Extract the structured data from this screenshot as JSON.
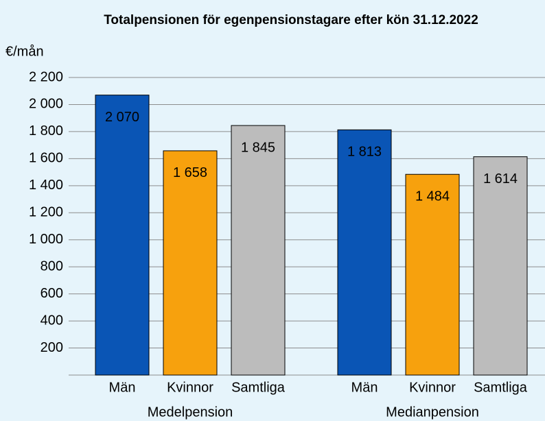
{
  "chart_data": {
    "type": "bar",
    "title": "Totalpensionen för egenpensionstagare efter kön 31.12.2022",
    "y_label": "€/mån",
    "categories": [
      "Medelpension",
      "Medianpension"
    ],
    "series": [
      {
        "name": "Män",
        "color": "#0a55b5",
        "values": [
          2070,
          1813
        ],
        "value_labels": [
          "2 070",
          "1 813"
        ]
      },
      {
        "name": "Kvinnor",
        "color": "#f7a10d",
        "values": [
          1658,
          1484
        ],
        "value_labels": [
          "1 658",
          "1 484"
        ]
      },
      {
        "name": "Samtliga",
        "color": "#bcbcbc",
        "values": [
          1845,
          1614
        ],
        "value_labels": [
          "1 845",
          "1 614"
        ]
      }
    ],
    "ylim": [
      0,
      2200
    ],
    "yticks": [
      200,
      400,
      600,
      800,
      {
        "value": 1000,
        "label": "1 000"
      },
      {
        "value": 1200,
        "label": "1 200"
      },
      {
        "value": 1400,
        "label": "1 400"
      },
      {
        "value": 1600,
        "label": "1 600"
      },
      {
        "value": 1800,
        "label": "1 800"
      },
      {
        "value": 2000,
        "label": "2 000"
      },
      {
        "value": 2200,
        "label": "2 200"
      }
    ],
    "grid": true
  }
}
